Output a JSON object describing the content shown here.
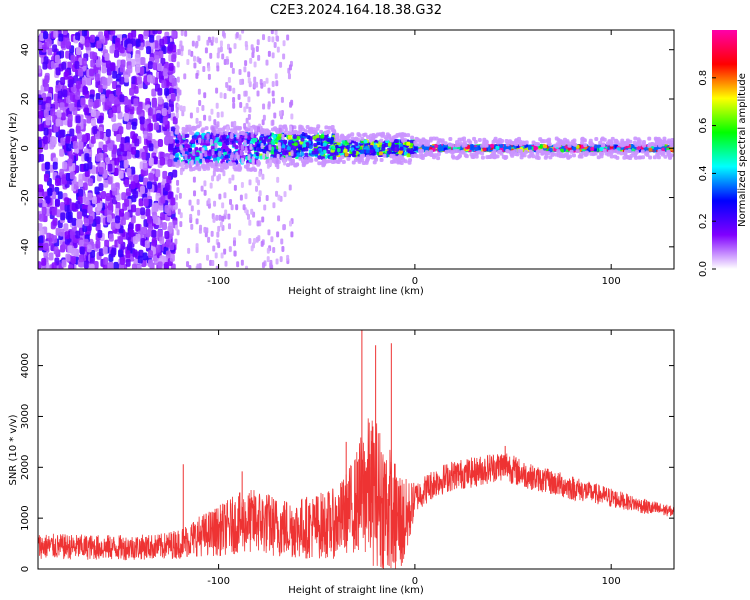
{
  "figure": {
    "title": "C2E3.2024.164.18.38.G32"
  },
  "chart_data": [
    {
      "type": "heatmap",
      "xlabel": "Height of straight line (km)",
      "ylabel": "Frequency (Hz)",
      "xlim": [
        -192,
        132
      ],
      "ylim": [
        -49,
        48
      ],
      "x_ticks": [
        -100,
        0,
        100
      ],
      "y_ticks": [
        -40,
        -20,
        0,
        20,
        40
      ],
      "grid": false,
      "colorbar": {
        "label": "Normalized spectral amplitude",
        "range": [
          0,
          1
        ],
        "ticks": [
          0.0,
          0.2,
          0.4,
          0.6,
          0.8
        ],
        "colormap": [
          "#ffffff",
          "#8000ff",
          "#0000ff",
          "#00ffff",
          "#00ff00",
          "#ffff00",
          "#ff0000",
          "#ff00aa"
        ]
      },
      "regions": [
        {
          "x_range": [
            -192,
            -122
          ],
          "freq_range": [
            -49,
            48
          ],
          "amplitude": 0.15,
          "description": "broad noise"
        },
        {
          "x_range": [
            -122,
            -80
          ],
          "freq_range": [
            -6,
            6
          ],
          "amplitude": 0.35
        },
        {
          "x_range": [
            -80,
            -40
          ],
          "freq_range": [
            -4,
            6
          ],
          "amplitude": 0.5
        },
        {
          "x_range": [
            -40,
            0
          ],
          "freq_range": [
            -3,
            3
          ],
          "amplitude": 0.55
        },
        {
          "x_range": [
            0,
            132
          ],
          "freq_range": [
            -1,
            1
          ],
          "amplitude": 0.85
        }
      ]
    },
    {
      "type": "line",
      "xlabel": "Height of straight line (km)",
      "ylabel": "SNR (10 * v/v)",
      "xlim": [
        -192,
        132
      ],
      "ylim": [
        0,
        4700
      ],
      "x_ticks": [
        -100,
        0,
        100
      ],
      "y_ticks": [
        0,
        1000,
        2000,
        3000,
        4000
      ],
      "grid": false,
      "series": [
        {
          "color": "#ee3333",
          "x": [
            -192,
            -170,
            -150,
            -130,
            -120,
            -110,
            -100,
            -90,
            -80,
            -70,
            -60,
            -50,
            -40,
            -35,
            -30,
            -25,
            -20,
            -15,
            -10,
            -5,
            0,
            10,
            20,
            30,
            40,
            47,
            50,
            60,
            70,
            80,
            90,
            100,
            110,
            120,
            132
          ],
          "mean": [
            450,
            430,
            420,
            440,
            500,
            650,
            750,
            900,
            950,
            820,
            800,
            850,
            900,
            1100,
            1300,
            1600,
            1500,
            1200,
            1000,
            900,
            1400,
            1700,
            1850,
            1900,
            2000,
            2050,
            1950,
            1800,
            1700,
            1600,
            1500,
            1400,
            1300,
            1200,
            1130
          ],
          "spread": [
            250,
            250,
            250,
            250,
            300,
            400,
            500,
            600,
            650,
            600,
            600,
            650,
            700,
            800,
            1000,
            1400,
            1500,
            1400,
            1200,
            900,
            300,
            300,
            300,
            300,
            300,
            300,
            300,
            250,
            250,
            250,
            200,
            200,
            150,
            150,
            100
          ],
          "peaks": [
            {
              "x": -27,
              "y": 4700
            },
            {
              "x": -20,
              "y": 4400
            },
            {
              "x": -12,
              "y": 4440
            },
            {
              "x": -35,
              "y": 2500
            },
            {
              "x": -118,
              "y": 2060
            },
            {
              "x": -88,
              "y": 1920
            },
            {
              "x": 46,
              "y": 2420
            }
          ]
        }
      ]
    }
  ]
}
